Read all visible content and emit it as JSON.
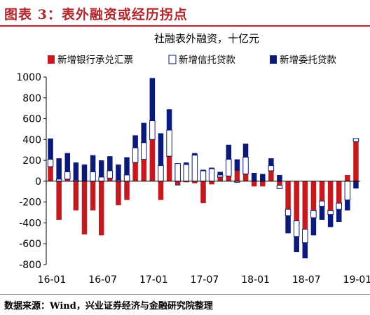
{
  "figure_title": "图表 3：表外融资或经历拐点",
  "source": "数据来源：Wind，兴业证券经济与金融研究院整理",
  "colors": {
    "accent": "#b0262b",
    "acceptance": "#c41a1f",
    "trust": "#ffffff",
    "entrusted": "#0b1a7a"
  },
  "chart_data": {
    "type": "bar",
    "stacked": true,
    "title": "社融表外融资，十亿元",
    "ylim": [
      -800,
      1000
    ],
    "y_ticks": [
      1000,
      800,
      600,
      400,
      200,
      0,
      -200,
      -400,
      -600,
      -800
    ],
    "x_tick_labels": [
      "16-01",
      "16-07",
      "17-01",
      "17-07",
      "18-01",
      "18-07",
      "19-01"
    ],
    "legend_position": "top",
    "grid": false,
    "categories": [
      "16-01",
      "16-02",
      "16-03",
      "16-04",
      "16-05",
      "16-06",
      "16-07",
      "16-08",
      "16-09",
      "16-10",
      "16-11",
      "16-12",
      "17-01",
      "17-02",
      "17-03",
      "17-04",
      "17-05",
      "17-06",
      "17-07",
      "17-08",
      "17-09",
      "17-10",
      "17-11",
      "17-12",
      "18-01",
      "18-02",
      "18-03",
      "18-04",
      "18-05",
      "18-06",
      "18-07",
      "18-08",
      "18-09",
      "18-10",
      "18-11",
      "18-12",
      "19-01"
    ],
    "series": [
      {
        "name": "新增银行承兑汇票",
        "key": "acceptance",
        "values": [
          140,
          -370,
          20,
          -280,
          -510,
          -280,
          -520,
          30,
          -230,
          -180,
          180,
          210,
          400,
          -180,
          240,
          -30,
          -10,
          -20,
          -210,
          -30,
          40,
          50,
          100,
          70,
          -50,
          -50,
          100,
          -40,
          -270,
          -380,
          -460,
          -280,
          -190,
          -280,
          -210,
          60,
          380
        ]
      },
      {
        "name": "新增信托贷款",
        "key": "trust",
        "values": [
          70,
          20,
          70,
          10,
          0,
          90,
          40,
          70,
          10,
          60,
          140,
          160,
          180,
          150,
          250,
          170,
          160,
          250,
          100,
          120,
          20,
          160,
          -10,
          160,
          0,
          0,
          50,
          -30,
          -60,
          -150,
          -130,
          -70,
          -50,
          -40,
          -60,
          -180,
          30
        ]
      },
      {
        "name": "新增委托贷款",
        "key": "entrusted",
        "values": [
          200,
          200,
          180,
          170,
          160,
          160,
          160,
          140,
          150,
          170,
          120,
          190,
          410,
          310,
          200,
          -10,
          20,
          20,
          10,
          10,
          30,
          140,
          110,
          130,
          80,
          70,
          70,
          60,
          -170,
          -150,
          -150,
          -170,
          -130,
          -120,
          -120,
          -100,
          -70
        ]
      }
    ]
  }
}
